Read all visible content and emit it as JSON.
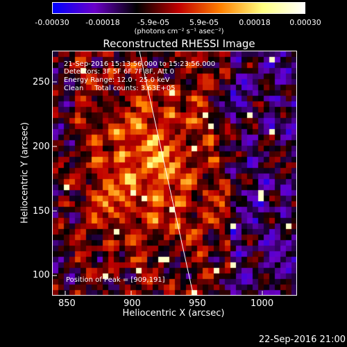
{
  "colorbar": {
    "ticks": [
      "-0.00030",
      "-0.00018",
      "-5.9e-05",
      "5.9e-05",
      "0.00018",
      "0.00030"
    ],
    "unit_label": "(photons cm⁻² s⁻¹ asec⁻²)",
    "colors": [
      "#0000ff",
      "#6a00c8",
      "#000000",
      "#c00000",
      "#ff8000",
      "#ffff80",
      "#ffffff"
    ]
  },
  "plot": {
    "title": "Reconstructed RHESSI Image",
    "xlabel": "Heliocentric X (arcsec)",
    "ylabel": "Heliocentric Y (arcsec)",
    "x_ticks": [
      "850",
      "900",
      "950",
      "1000"
    ],
    "y_ticks": [
      "100",
      "150",
      "200",
      "250"
    ],
    "info_lines": [
      "21-Sep-2016 15:13:56.000 to 15:23:56.000",
      "Detectors: 3F 5F 6F 7F 8F, Att 0",
      "Energy Range: 12.0 - 25.0 keV",
      "Clean     Total counts: 3.63E+05"
    ],
    "peak_label": "Position of Peak = [909,191]"
  },
  "footer": {
    "timestamp": "22-Sep-2016 21:00"
  }
}
